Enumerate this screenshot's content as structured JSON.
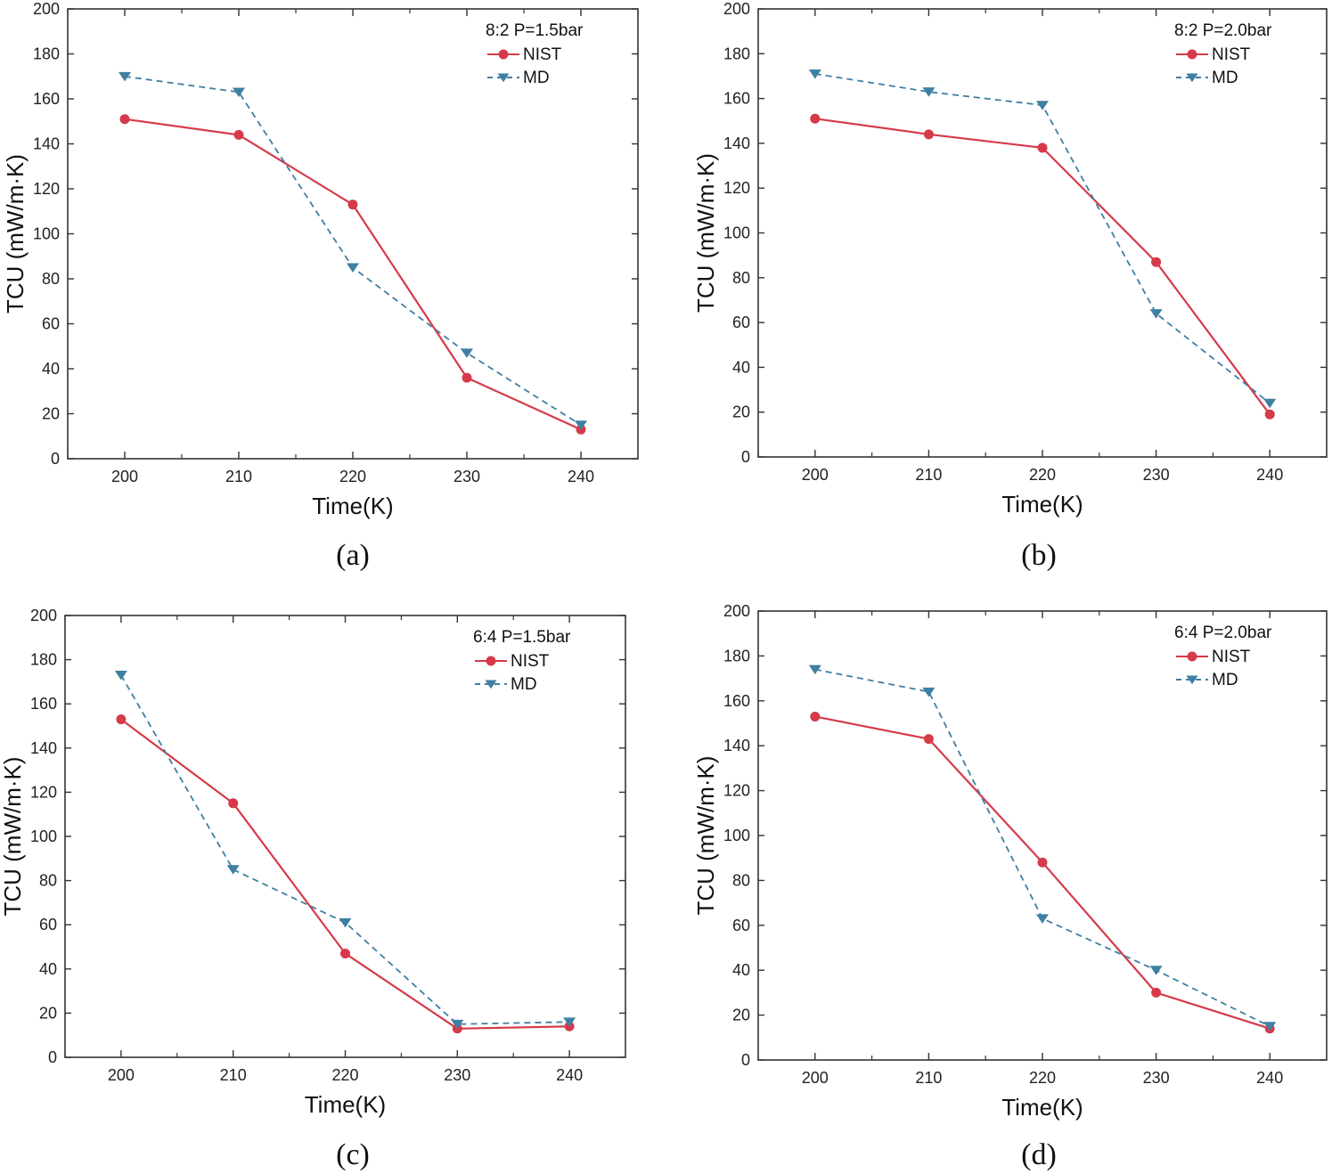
{
  "chart_data": [
    {
      "type": "line",
      "panel_label": "(a)",
      "legend_title": "8:2  P=1.5bar",
      "xlabel": "Time(K)",
      "ylabel": "TCU (mW/m·K)",
      "x": [
        200,
        210,
        220,
        230,
        240
      ],
      "xlim": [
        195,
        245
      ],
      "ylim": [
        0,
        200
      ],
      "xticks": [
        "200",
        "210",
        "220",
        "230",
        "240"
      ],
      "yticks": [
        "0",
        "20",
        "40",
        "60",
        "80",
        "100",
        "120",
        "140",
        "160",
        "180",
        "200"
      ],
      "legend_position": "top-right",
      "series": [
        {
          "name": "NIST",
          "values": [
            151,
            144,
            113,
            36,
            13
          ],
          "color": "#d63a4a",
          "marker": "circle",
          "dash": "solid"
        },
        {
          "name": "MD",
          "values": [
            170,
            163,
            85,
            47,
            15
          ],
          "color": "#3f7fa2",
          "marker": "triangle-down",
          "dash": "dashed"
        }
      ]
    },
    {
      "type": "line",
      "panel_label": "(b)",
      "legend_title": "8:2  P=2.0bar",
      "xlabel": "Time(K)",
      "ylabel": "TCU (mW/m·K)",
      "x": [
        200,
        210,
        220,
        230,
        240
      ],
      "xlim": [
        195,
        245
      ],
      "ylim": [
        0,
        200
      ],
      "xticks": [
        "200",
        "210",
        "220",
        "230",
        "240"
      ],
      "yticks": [
        "0",
        "20",
        "40",
        "60",
        "80",
        "100",
        "120",
        "140",
        "160",
        "180",
        "200"
      ],
      "legend_position": "top-right",
      "series": [
        {
          "name": "NIST",
          "values": [
            151,
            144,
            138,
            87,
            19
          ],
          "color": "#d63a4a",
          "marker": "circle",
          "dash": "solid"
        },
        {
          "name": "MD",
          "values": [
            171,
            163,
            157,
            64,
            24
          ],
          "color": "#3f7fa2",
          "marker": "triangle-down",
          "dash": "dashed"
        }
      ]
    },
    {
      "type": "line",
      "panel_label": "(c)",
      "legend_title": "6:4  P=1.5bar",
      "xlabel": "Time(K)",
      "ylabel": "TCU (mW/m·K)",
      "x": [
        200,
        210,
        220,
        230,
        240
      ],
      "xlim": [
        195,
        245
      ],
      "ylim": [
        0,
        200
      ],
      "xticks": [
        "200",
        "210",
        "220",
        "230",
        "240"
      ],
      "yticks": [
        "0",
        "20",
        "40",
        "60",
        "80",
        "100",
        "120",
        "140",
        "160",
        "180",
        "200"
      ],
      "legend_position": "top-right",
      "series": [
        {
          "name": "NIST",
          "values": [
            153,
            115,
            47,
            13,
            14
          ],
          "color": "#d63a4a",
          "marker": "circle",
          "dash": "solid"
        },
        {
          "name": "MD",
          "values": [
            173,
            85,
            61,
            15,
            16
          ],
          "color": "#3f7fa2",
          "marker": "triangle-down",
          "dash": "dashed"
        }
      ]
    },
    {
      "type": "line",
      "panel_label": "(d)",
      "legend_title": "6:4  P=2.0bar",
      "xlabel": "Time(K)",
      "ylabel": "TCU (mW/m·K)",
      "x": [
        200,
        210,
        220,
        230,
        240
      ],
      "xlim": [
        195,
        245
      ],
      "ylim": [
        0,
        200
      ],
      "xticks": [
        "200",
        "210",
        "220",
        "230",
        "240"
      ],
      "yticks": [
        "0",
        "20",
        "40",
        "60",
        "80",
        "100",
        "120",
        "140",
        "160",
        "180",
        "200"
      ],
      "legend_position": "top-right",
      "series": [
        {
          "name": "NIST",
          "values": [
            153,
            143,
            88,
            30,
            14
          ],
          "color": "#d63a4a",
          "marker": "circle",
          "dash": "solid"
        },
        {
          "name": "MD",
          "values": [
            174,
            164,
            63,
            40,
            15
          ],
          "color": "#3f7fa2",
          "marker": "triangle-down",
          "dash": "dashed"
        }
      ]
    }
  ]
}
